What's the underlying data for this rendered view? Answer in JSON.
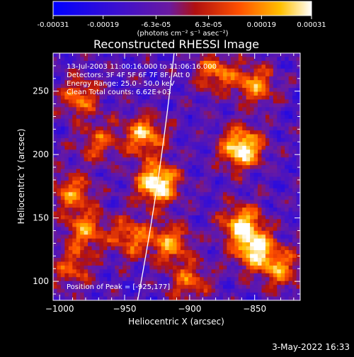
{
  "colorbar": {
    "tick_labels": [
      "-0.00031",
      "-0.00019",
      "-6.3e-05",
      "6.3e-05",
      "0.00019",
      "0.00031"
    ],
    "tick_values": [
      -0.00031,
      -0.00019,
      -6.3e-05,
      6.3e-05,
      0.00019,
      0.00031
    ],
    "range": [
      -0.00031,
      0.00031
    ],
    "units": "(photons cm⁻² s⁻¹ asec⁻²)",
    "colormap": "blue-purple-red-orange-yellow-white"
  },
  "chart_data": {
    "type": "heatmap",
    "title": "Reconstructed RHESSI Image",
    "xlabel": "Heliocentric X (arcsec)",
    "ylabel": "Heliocentric Y (arcsec)",
    "xlim": [
      -1005,
      -815
    ],
    "ylim": [
      85,
      280
    ],
    "x_ticks": [
      -1000,
      -950,
      -900,
      -850
    ],
    "x_tick_labels": [
      "−1000",
      "−950",
      "−900",
      "−850"
    ],
    "y_ticks": [
      100,
      150,
      200,
      250
    ],
    "y_tick_labels": [
      "100",
      "150",
      "200",
      "250"
    ],
    "info_lines": [
      "13-Jul-2003 11:00:16.000 to 11:06:16.000",
      "Detectors: 3F 4F 5F 6F 7F 8F, Att 0",
      "Energy Range: 25.0 - 50.0 keV",
      "Clean     Total counts: 6.62E+03"
    ],
    "peak_label": "Position of Peak = [-925,177]",
    "peak": [
      -925,
      177
    ],
    "bright_sources": [
      {
        "x": -925,
        "y": 177,
        "level": 1.0
      },
      {
        "x": -860,
        "y": 205,
        "level": 0.95
      },
      {
        "x": -935,
        "y": 215,
        "level": 0.7
      },
      {
        "x": -990,
        "y": 170,
        "level": 0.55
      },
      {
        "x": -980,
        "y": 140,
        "level": 0.6
      },
      {
        "x": -945,
        "y": 135,
        "level": 0.55
      },
      {
        "x": -915,
        "y": 130,
        "level": 0.6
      },
      {
        "x": -860,
        "y": 145,
        "level": 0.75
      },
      {
        "x": -850,
        "y": 125,
        "level": 0.8
      },
      {
        "x": -830,
        "y": 110,
        "level": 0.55
      },
      {
        "x": -900,
        "y": 100,
        "level": 0.5
      },
      {
        "x": -850,
        "y": 255,
        "level": 0.6
      },
      {
        "x": -880,
        "y": 265,
        "level": 0.55
      },
      {
        "x": -985,
        "y": 245,
        "level": 0.55
      },
      {
        "x": -970,
        "y": 210,
        "level": 0.45
      },
      {
        "x": -990,
        "y": 110,
        "level": 0.45
      }
    ],
    "limb": {
      "x0": -940,
      "y0": 85,
      "x1": -912,
      "y1": 280
    }
  },
  "footer": {
    "timestamp": "3-May-2022 16:33"
  },
  "colors": {
    "background": "#000000",
    "axis": "#ffffff",
    "limb": "#ffffff"
  }
}
